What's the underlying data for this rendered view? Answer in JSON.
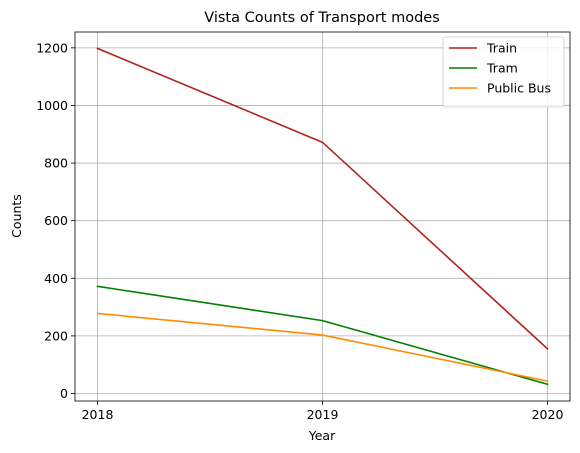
{
  "chart_data": {
    "type": "line",
    "title": "Vista Counts of Transport modes",
    "xlabel": "Year",
    "ylabel": "Counts",
    "x": [
      2018,
      2019,
      2020
    ],
    "x_tick_labels": [
      "2018",
      "2019",
      "2020"
    ],
    "y_ticks": [
      0,
      200,
      400,
      600,
      800,
      1000,
      1200
    ],
    "y_tick_labels": [
      "0",
      "200",
      "400",
      "600",
      "800",
      "1000",
      "1200"
    ],
    "xlim": [
      2017.9,
      2020.1
    ],
    "ylim": [
      -26,
      1255
    ],
    "grid": true,
    "legend_position": "top-right",
    "series": [
      {
        "name": "Train",
        "color": "#b22222",
        "values": [
          1198,
          872,
          155
        ]
      },
      {
        "name": "Tram",
        "color": "#008000",
        "values": [
          372,
          253,
          32
        ]
      },
      {
        "name": "Public Bus",
        "color": "#ff8c00",
        "values": [
          278,
          203,
          43
        ]
      }
    ]
  }
}
